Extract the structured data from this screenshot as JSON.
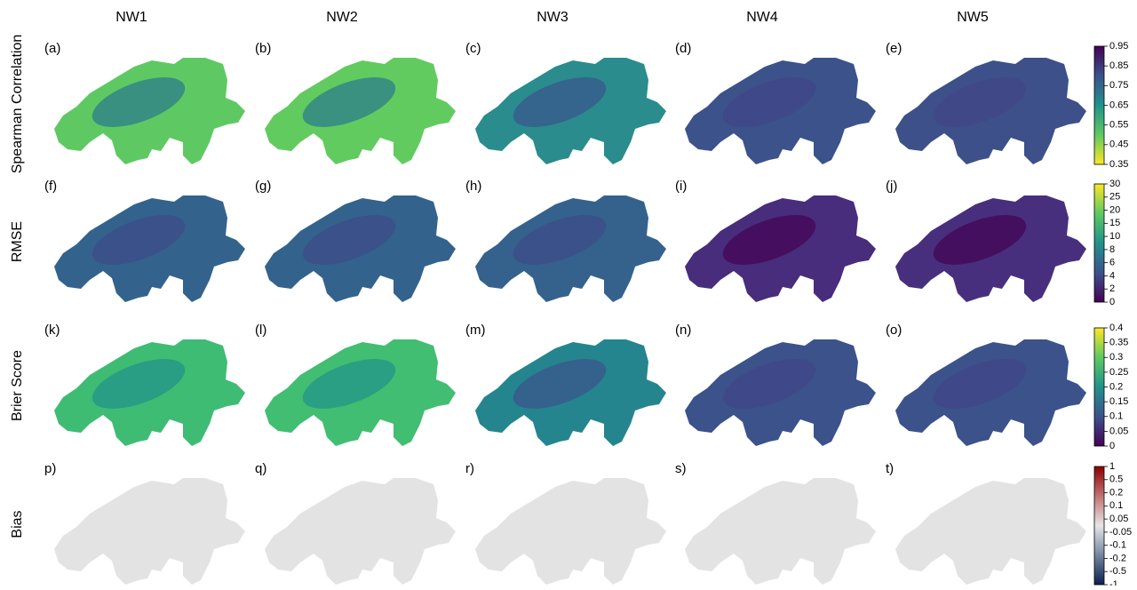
{
  "columns": [
    "NW1",
    "NW2",
    "NW3",
    "NW4",
    "NW5"
  ],
  "rows": [
    {
      "label": "Spearman Correlation",
      "panels": [
        "(a)",
        "(b)",
        "(c)",
        "(d)",
        "(e)"
      ],
      "colorbar": [
        0.95,
        0.85,
        0.75,
        0.65,
        0.55,
        0.45,
        0.35
      ]
    },
    {
      "label": "RMSE",
      "panels": [
        "(f)",
        "(g)",
        "(h)",
        "(i)",
        "(j)"
      ],
      "colorbar": [
        30,
        25,
        20,
        15,
        10,
        8,
        6,
        4,
        2,
        0
      ]
    },
    {
      "label": "Brier Score",
      "panels": [
        "(k)",
        "(l)",
        "(m)",
        "(n)",
        "(o)"
      ],
      "colorbar": [
        0.4,
        0.35,
        0.3,
        0.25,
        0.2,
        0.15,
        0.1,
        0.05,
        0
      ]
    },
    {
      "label": "Bias",
      "panels": [
        "p)",
        "q)",
        "r)",
        "s)",
        "t)"
      ],
      "colorbar": [
        1,
        0.5,
        0.2,
        0.1,
        0.05,
        -0.05,
        -0.1,
        -0.2,
        -0.5,
        -1
      ]
    }
  ]
}
